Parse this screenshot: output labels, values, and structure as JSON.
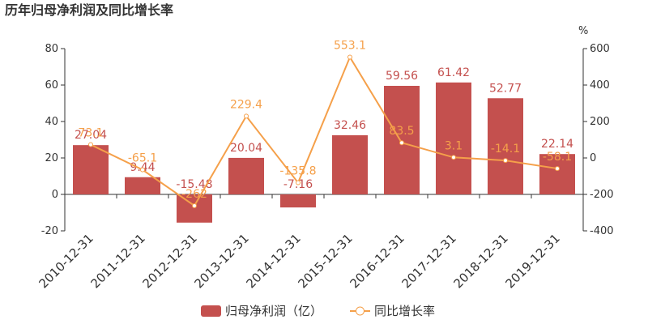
{
  "chart_data": {
    "type": "bar-line",
    "title": "历年归母净利润及同比增长率",
    "categories": [
      "2010-12-31",
      "2011-12-31",
      "2012-12-31",
      "2013-12-31",
      "2014-12-31",
      "2015-12-31",
      "2016-12-31",
      "2017-12-31",
      "2018-12-31",
      "2019-12-31"
    ],
    "series": [
      {
        "name": "归母净利润（亿）",
        "type": "bar",
        "color": "#c4504e",
        "values": [
          27.04,
          9.44,
          -15.48,
          20.04,
          -7.16,
          32.46,
          59.56,
          61.42,
          52.77,
          22.14
        ]
      },
      {
        "name": "同比增长率",
        "type": "line",
        "axis": "y2",
        "color": "#f5a04a",
        "values": [
          73.1,
          -65.1,
          -262,
          229.4,
          -135.8,
          553.1,
          83.5,
          3.1,
          -14.1,
          -58.1
        ]
      }
    ],
    "ylim": [
      -20,
      80
    ],
    "yticks": [
      -20,
      0,
      20,
      40,
      60,
      80
    ],
    "y2lim": [
      -400,
      600
    ],
    "y2ticks": [
      -400,
      -200,
      0,
      200,
      400,
      600
    ],
    "y2label": "%"
  }
}
